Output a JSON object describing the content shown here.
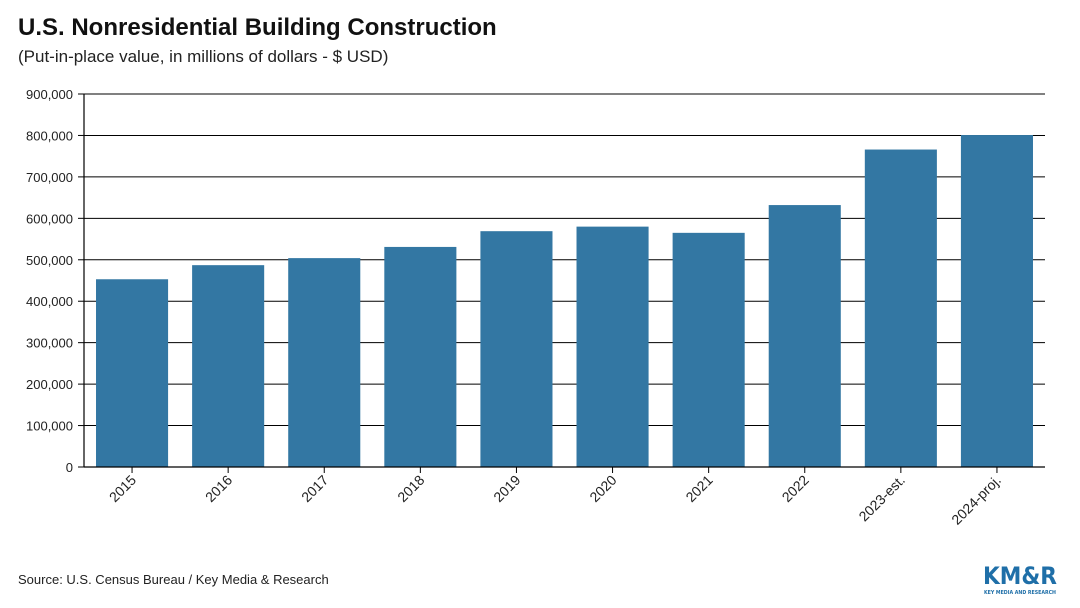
{
  "header": {
    "title": "U.S. Nonresidential Building Construction",
    "subtitle": "(Put-in-place value, in millions of dollars - $ USD)"
  },
  "footer": {
    "source": "Source: U.S. Census Bureau / Key Media & Research",
    "logo_text": "KM&R",
    "logo_subtext": "KEY MEDIA AND RESEARCH"
  },
  "colors": {
    "bar": "#3377a3",
    "logo": "#1f6fa8"
  },
  "chart_data": {
    "type": "bar",
    "categories": [
      "2015",
      "2016",
      "2017",
      "2018",
      "2019",
      "2020",
      "2021",
      "2022",
      "2023-est.",
      "2024-proj."
    ],
    "values": [
      453000,
      487000,
      504000,
      531000,
      569000,
      580000,
      565000,
      632000,
      766000,
      801000
    ],
    "ylim": [
      0,
      900000
    ],
    "yticks": [
      0,
      100000,
      200000,
      300000,
      400000,
      500000,
      600000,
      700000,
      800000,
      900000
    ],
    "ytick_labels": [
      "0",
      "100,000",
      "200,000",
      "300,000",
      "400,000",
      "500,000",
      "600,000",
      "700,000",
      "800,000",
      "900,000"
    ],
    "grid": true,
    "xlabel": "",
    "ylabel": ""
  }
}
